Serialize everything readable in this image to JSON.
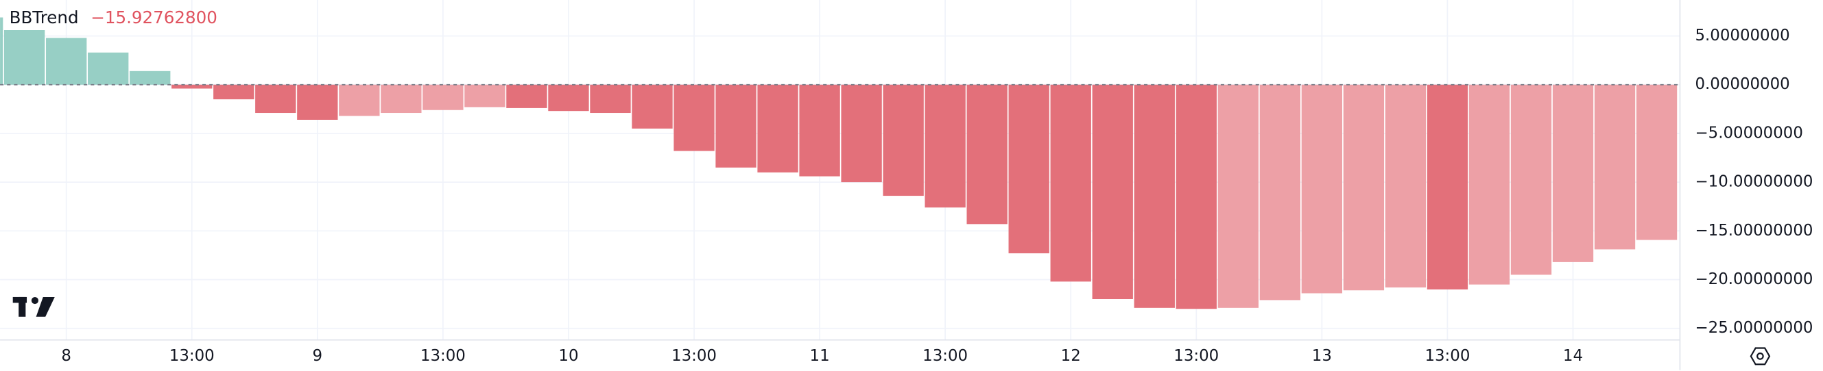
{
  "chart_data": {
    "type": "bar",
    "title": "BBTrend",
    "current_value_label": "−15.92762800",
    "current_value_color": "#e0535f",
    "categories": [
      null,
      null,
      "8",
      null,
      null,
      "13:00",
      null,
      null,
      "9",
      null,
      null,
      "13:00",
      null,
      null,
      "10",
      null,
      null,
      "13:00",
      null,
      null,
      "11",
      null,
      null,
      "13:00",
      null,
      null,
      "12",
      null,
      null,
      "13:00",
      null,
      null,
      "13",
      null,
      null,
      "13:00",
      null,
      null,
      "14",
      null,
      null
    ],
    "values": [
      6.9,
      5.6,
      4.8,
      3.3,
      1.4,
      -0.4,
      -1.5,
      -2.9,
      -3.6,
      -3.2,
      -2.9,
      -2.6,
      -2.3,
      -2.4,
      -2.7,
      -2.9,
      -4.5,
      -6.8,
      -8.5,
      -9.0,
      -9.4,
      -10.0,
      -11.4,
      -12.6,
      -14.3,
      -17.3,
      -20.2,
      -22.0,
      -22.9,
      -23.0,
      -22.9,
      -22.1,
      -21.4,
      -21.1,
      -20.8,
      -21.0,
      -20.5,
      -19.5,
      -18.2,
      -16.9,
      -15.927628
    ],
    "colors": [
      "#97cfc5",
      "#97cfc5",
      "#97cfc5",
      "#97cfc5",
      "#97cfc5",
      "#e3707a",
      "#e3707a",
      "#e3707a",
      "#e3707a",
      "#eda0a6",
      "#eda0a6",
      "#eda0a6",
      "#eda0a6",
      "#e3707a",
      "#e3707a",
      "#e3707a",
      "#e3707a",
      "#e3707a",
      "#e3707a",
      "#e3707a",
      "#e3707a",
      "#e3707a",
      "#e3707a",
      "#e3707a",
      "#e3707a",
      "#e3707a",
      "#e3707a",
      "#e3707a",
      "#e3707a",
      "#e3707a",
      "#eda0a6",
      "#eda0a6",
      "#eda0a6",
      "#eda0a6",
      "#eda0a6",
      "#e3707a",
      "#eda0a6",
      "#eda0a6",
      "#eda0a6",
      "#eda0a6",
      "#eda0a6"
    ],
    "ylim": [
      -26.19,
      8.69
    ],
    "yticks": [
      {
        "value": 5,
        "label": "5.00000000"
      },
      {
        "value": 0,
        "label": "0.00000000"
      },
      {
        "value": -5,
        "label": "−5.00000000"
      },
      {
        "value": -10,
        "label": "−10.00000000"
      },
      {
        "value": -15,
        "label": "−15.00000000"
      },
      {
        "value": -20,
        "label": "−20.00000000"
      },
      {
        "value": -25,
        "label": "−25.00000000"
      }
    ],
    "grid": true,
    "zero_line": true
  }
}
